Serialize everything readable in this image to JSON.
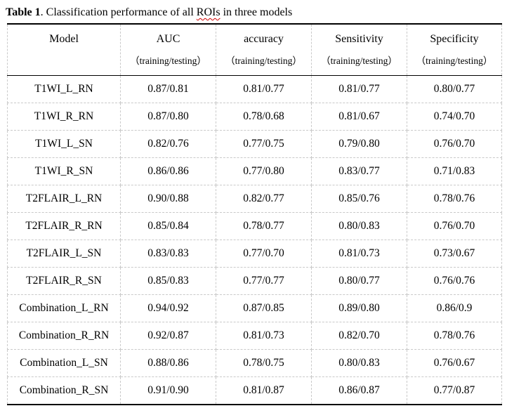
{
  "caption": {
    "label": "Table 1",
    "mid": ". Classification performance of all ",
    "misspelled": "ROIs",
    "tail": " in three models"
  },
  "colors": {
    "text": "#000000",
    "solid_rule": "#000000",
    "dashed_grid": "#c9c9c9",
    "spellcheck_underline": "#d00000",
    "background": "#ffffff"
  },
  "table": {
    "columns": [
      {
        "label": "Model",
        "sub": ""
      },
      {
        "label": "AUC",
        "sub": "（training/testing）"
      },
      {
        "label": "accuracy",
        "sub": "（training/testing）"
      },
      {
        "label": "Sensitivity",
        "sub": "（training/testing）"
      },
      {
        "label": "Specificity",
        "sub": "（training/testing）"
      }
    ],
    "rows": [
      {
        "model": "T1WI_L_RN",
        "auc": "0.87/0.81",
        "accuracy": "0.81/0.77",
        "sensitivity": "0.81/0.77",
        "specificity": "0.80/0.77"
      },
      {
        "model": "T1WI_R_RN",
        "auc": "0.87/0.80",
        "accuracy": "0.78/0.68",
        "sensitivity": "0.81/0.67",
        "specificity": "0.74/0.70"
      },
      {
        "model": "T1WI_L_SN",
        "auc": "0.82/0.76",
        "accuracy": "0.77/0.75",
        "sensitivity": "0.79/0.80",
        "specificity": "0.76/0.70"
      },
      {
        "model": "T1WI_R_SN",
        "auc": "0.86/0.86",
        "accuracy": "0.77/0.80",
        "sensitivity": "0.83/0.77",
        "specificity": "0.71/0.83"
      },
      {
        "model": "T2FLAIR_L_RN",
        "auc": "0.90/0.88",
        "accuracy": "0.82/0.77",
        "sensitivity": "0.85/0.76",
        "specificity": "0.78/0.76"
      },
      {
        "model": "T2FLAIR_R_RN",
        "auc": "0.85/0.84",
        "accuracy": "0.78/0.77",
        "sensitivity": "0.80/0.83",
        "specificity": "0.76/0.70"
      },
      {
        "model": "T2FLAIR_L_SN",
        "auc": "0.83/0.83",
        "accuracy": "0.77/0.70",
        "sensitivity": "0.81/0.73",
        "specificity": "0.73/0.67"
      },
      {
        "model": "T2FLAIR_R_SN",
        "auc": "0.85/0.83",
        "accuracy": "0.77/0.77",
        "sensitivity": "0.80/0.77",
        "specificity": "0.76/0.76"
      },
      {
        "model": "Combination_L_RN",
        "auc": "0.94/0.92",
        "accuracy": "0.87/0.85",
        "sensitivity": "0.89/0.80",
        "specificity": "0.86/0.9"
      },
      {
        "model": "Combination_R_RN",
        "auc": "0.92/0.87",
        "accuracy": "0.81/0.73",
        "sensitivity": "0.82/0.70",
        "specificity": "0.78/0.76"
      },
      {
        "model": "Combination_L_SN",
        "auc": "0.88/0.86",
        "accuracy": "0.78/0.75",
        "sensitivity": "0.80/0.83",
        "specificity": "0.76/0.67"
      },
      {
        "model": "Combination_R_SN",
        "auc": "0.91/0.90",
        "accuracy": "0.81/0.87",
        "sensitivity": "0.86/0.87",
        "specificity": "0.77/0.87"
      }
    ]
  }
}
